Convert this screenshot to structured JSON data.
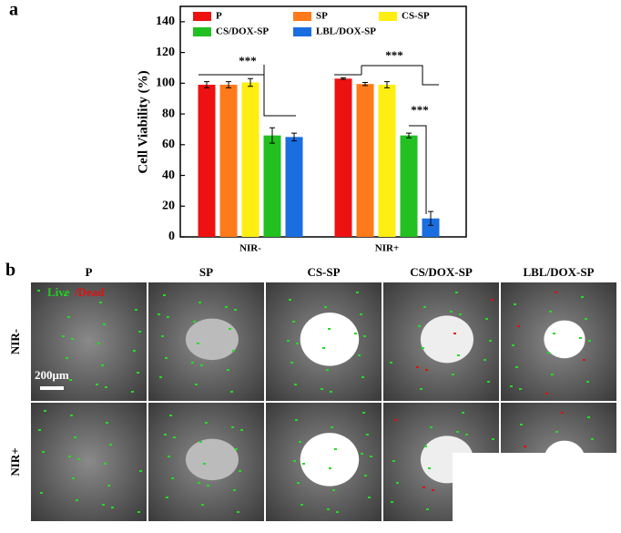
{
  "chart_data": {
    "type": "bar",
    "panel_label": "a",
    "ylabel": "Cell Viability (%)",
    "categories": [
      "NIR-",
      "NIR+"
    ],
    "series": [
      {
        "name": "P",
        "color": "#ee1111",
        "values": [
          99,
          103
        ],
        "errors": [
          2,
          0.5
        ]
      },
      {
        "name": "SP",
        "color": "#ff7a1a",
        "values": [
          99,
          99.5
        ],
        "errors": [
          2,
          1
        ]
      },
      {
        "name": "CS-SP",
        "color": "#ffee11",
        "values": [
          100.5,
          99
        ],
        "errors": [
          2.5,
          2
        ]
      },
      {
        "name": "CS/DOX-SP",
        "color": "#22c020",
        "values": [
          66,
          66
        ],
        "errors": [
          5,
          1.5
        ]
      },
      {
        "name": "LBL/DOX-SP",
        "color": "#1a6ee0",
        "values": [
          65,
          12
        ],
        "errors": [
          2.5,
          4.5
        ]
      }
    ],
    "ylim": [
      0,
      150
    ],
    "yticks": [
      0,
      20,
      40,
      60,
      80,
      100,
      120,
      140
    ],
    "significance": [
      "***",
      "***",
      "***"
    ]
  },
  "images": {
    "panel_label": "b",
    "columns": [
      "P",
      "SP",
      "CS-SP",
      "CS/DOX-SP",
      "LBL/DOX-SP"
    ],
    "rows": [
      "NIR-",
      "NIR+"
    ],
    "stain_live": "Live",
    "stain_dead": "/Dead",
    "scale_bar": "200μm"
  }
}
